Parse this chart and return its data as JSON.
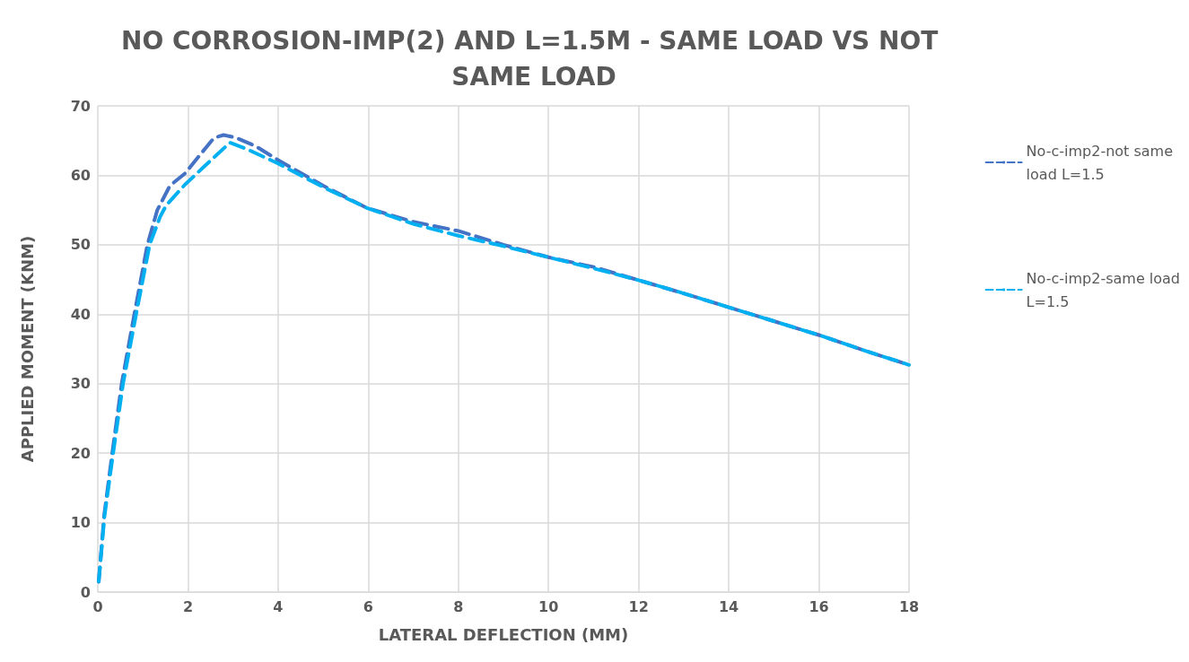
{
  "chart_data": {
    "type": "line",
    "title": "NO CORROSION-IMP(2) AND L=1.5M - SAME LOAD VS NOT SAME LOAD",
    "xlabel": "LATERAL DEFLECTION (MM)",
    "ylabel": "APPLIED MOMENT (KNM)",
    "xlim": [
      0,
      18
    ],
    "xticks": [
      0,
      2,
      4,
      6,
      8,
      10,
      12,
      14,
      16,
      18
    ],
    "ylim": [
      0,
      70
    ],
    "yticks": [
      0,
      10,
      20,
      30,
      40,
      50,
      60,
      70
    ],
    "grid": true,
    "legend": "right",
    "marker": "none",
    "line_style": "dashed",
    "series": [
      {
        "name": "No-c-imp2-not same load L=1.5",
        "color": "#4472c4",
        "x": [
          0.02,
          0.14,
          0.32,
          0.53,
          0.81,
          1.1,
          1.32,
          1.6,
          1.94,
          2.3,
          2.58,
          2.79,
          3.07,
          3.5,
          4.0,
          5.0,
          5.97,
          7.0,
          8.0,
          9.0,
          10.0,
          11.0,
          12.0,
          13.0,
          14.0,
          15.0,
          16.0,
          17.0,
          18.0
        ],
        "values": [
          1.5,
          11,
          20,
          30,
          40,
          50,
          55,
          58.5,
          60.3,
          63.2,
          65.4,
          65.8,
          65.4,
          64.2,
          62.2,
          58.5,
          55.3,
          53.3,
          52,
          50,
          48.2,
          46.8,
          44.9,
          43,
          41,
          39,
          37,
          34.8,
          32.7
        ]
      },
      {
        "name": "No-c-imp2-same load L=1.5",
        "color": "#00b0f0",
        "x": [
          0.02,
          0.15,
          0.34,
          0.56,
          0.85,
          1.15,
          1.38,
          1.52,
          1.94,
          2.4,
          2.93,
          3.3,
          4.0,
          5.0,
          5.97,
          7.0,
          8.0,
          9.0,
          10.0,
          11.0,
          12.0,
          13.0,
          14.0,
          15.0,
          16.0,
          17.0,
          18.0
        ],
        "values": [
          1.5,
          11,
          20,
          30,
          40,
          50,
          54,
          55.7,
          58.7,
          61.5,
          64.7,
          63.8,
          61.7,
          58.3,
          55.3,
          53,
          51.3,
          49.8,
          48.2,
          46.6,
          44.9,
          43,
          41,
          39,
          37,
          34.8,
          32.7
        ]
      }
    ]
  }
}
